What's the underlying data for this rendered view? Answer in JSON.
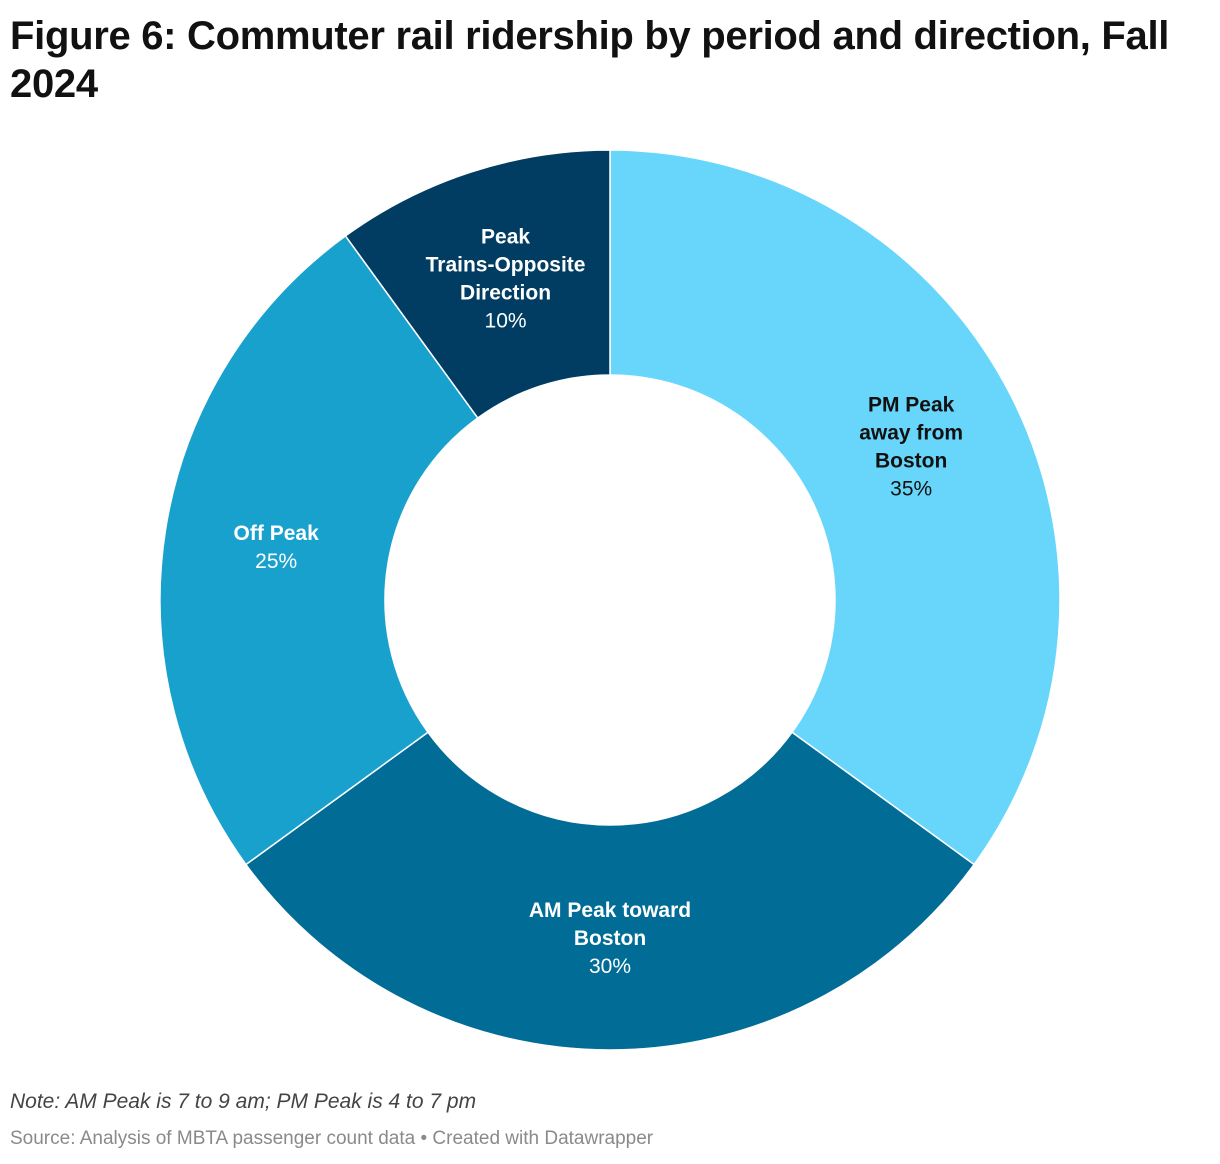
{
  "title": "Figure 6: Commuter rail ridership by period and direction, Fall 2024",
  "chart_data": {
    "type": "pie",
    "variant": "donut",
    "title": "Figure 6: Commuter rail ridership by period and direction, Fall 2024",
    "slices": [
      {
        "name": "PM Peak away from Boston",
        "label_lines": [
          "PM Peak",
          "away from",
          "Boston"
        ],
        "value": 35,
        "value_label": "35%",
        "color": "#68d5fb",
        "text_color": "#111111"
      },
      {
        "name": "AM Peak toward Boston",
        "label_lines": [
          "AM Peak toward",
          "Boston"
        ],
        "value": 30,
        "value_label": "30%",
        "color": "#016c95",
        "text_color": "#ffffff"
      },
      {
        "name": "Off Peak",
        "label_lines": [
          "Off Peak"
        ],
        "value": 25,
        "value_label": "25%",
        "color": "#19a1ce",
        "text_color": "#ffffff"
      },
      {
        "name": "Peak Trains-Opposite Direction",
        "label_lines": [
          "Peak",
          "Trains-Opposite",
          "Direction"
        ],
        "value": 10,
        "value_label": "10%",
        "color": "#013d62",
        "text_color": "#ffffff"
      }
    ],
    "start_angle": "12 o'clock",
    "direction": "clockwise"
  },
  "note": "Note: AM Peak is 7 to 9 am; PM Peak is 4 to 7 pm",
  "source": "Source: Analysis of MBTA passenger count data • Created with Datawrapper"
}
